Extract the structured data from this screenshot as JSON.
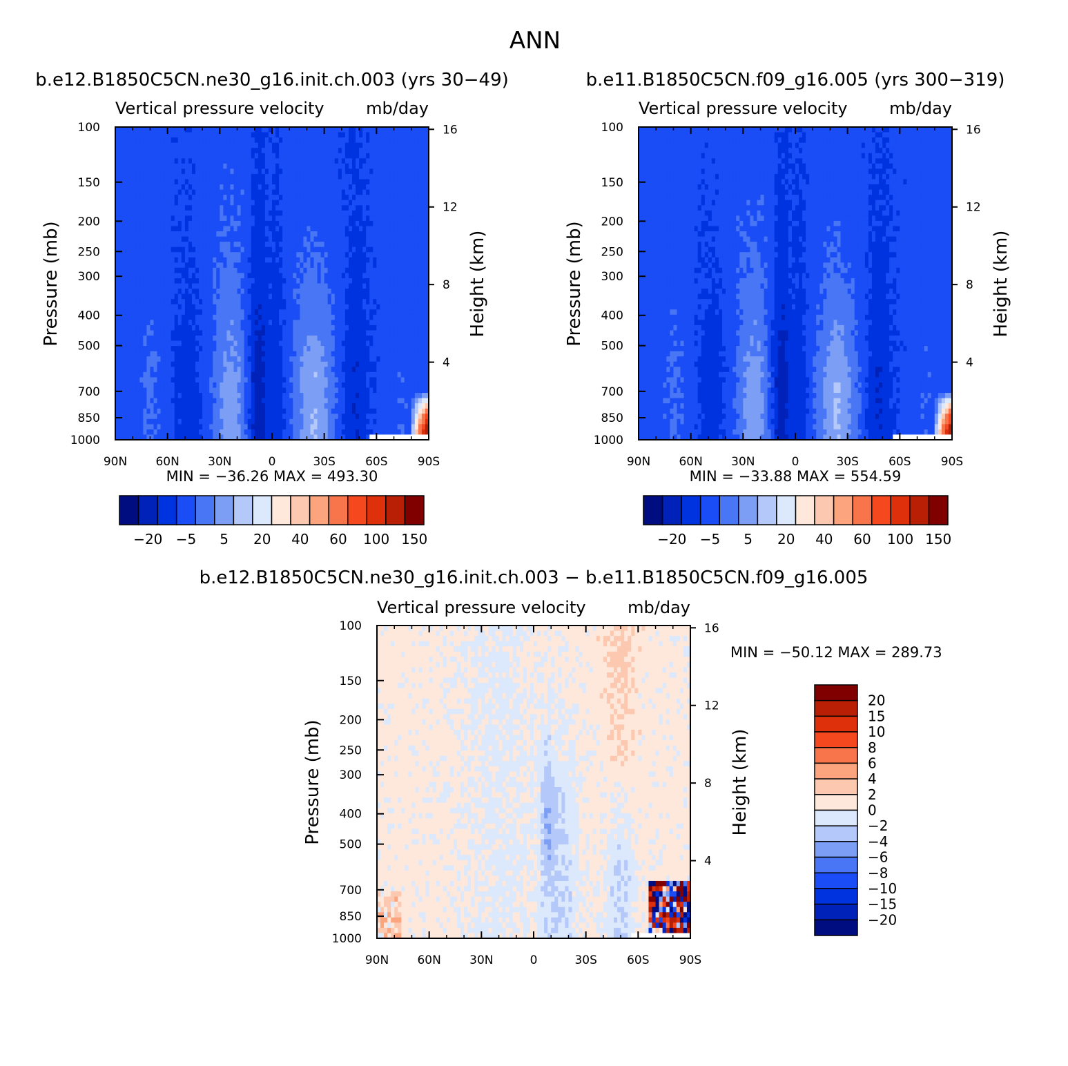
{
  "figure_title": "ANN",
  "panels": [
    {
      "title": "b.e12.B1850C5CN.ne30_g16.init.ch.003 (yrs 30-49)",
      "field_name": "Vertical pressure velocity",
      "field_units": "mb/day",
      "min_max": "MIN = -36.26   MAX = 493.30"
    },
    {
      "title": "b.e11.B1850C5CN.f09_g16.005 (yrs 300-319)",
      "field_name": "Vertical pressure velocity",
      "field_units": "mb/day",
      "min_max": "MIN = -33.88   MAX = 554.59"
    },
    {
      "title": "b.e12.B1850C5CN.ne30_g16.init.ch.003 - b.e11.B1850C5CN.f09_g16.005",
      "field_name": "Vertical pressure velocity",
      "field_units": "mb/day",
      "min_max": "MIN = -50.12   MAX = 289.73"
    }
  ],
  "chart_data": [
    {
      "type": "heatmap",
      "title": "b.e12.B1850C5CN.ne30_g16.init.ch.003 (yrs 30-49)",
      "xlabel": "",
      "ylabel": "Pressure (mb)",
      "y2label": "Height (km)",
      "x_ticks": [
        "90N",
        "60N",
        "30N",
        "0",
        "30S",
        "60S",
        "90S"
      ],
      "x_values": [
        90,
        60,
        30,
        0,
        -30,
        -60,
        -90
      ],
      "y_ticks": [
        100,
        150,
        200,
        250,
        300,
        400,
        500,
        700,
        850,
        1000
      ],
      "y_scale": "log",
      "ylim": [
        1000,
        100
      ],
      "y2_ticks": [
        4,
        8,
        12,
        16
      ],
      "colorbar_labels": [
        "-20",
        "-5",
        "5",
        "20",
        "40",
        "60",
        "100",
        "150"
      ],
      "min": -36.26,
      "max": 493.3
    },
    {
      "type": "heatmap",
      "title": "b.e11.B1850C5CN.f09_g16.005 (yrs 300-319)",
      "xlabel": "",
      "ylabel": "Pressure (mb)",
      "y2label": "Height (km)",
      "x_ticks": [
        "90N",
        "60N",
        "30N",
        "0",
        "30S",
        "60S",
        "90S"
      ],
      "x_values": [
        90,
        60,
        30,
        0,
        -30,
        -60,
        -90
      ],
      "y_ticks": [
        100,
        150,
        200,
        250,
        300,
        400,
        500,
        700,
        850,
        1000
      ],
      "y_scale": "log",
      "ylim": [
        1000,
        100
      ],
      "y2_ticks": [
        4,
        8,
        12,
        16
      ],
      "colorbar_labels": [
        "-20",
        "-5",
        "5",
        "20",
        "40",
        "60",
        "100",
        "150"
      ],
      "min": -33.88,
      "max": 554.59
    },
    {
      "type": "heatmap",
      "title": "b.e12.B1850C5CN.ne30_g16.init.ch.003 - b.e11.B1850C5CN.f09_g16.005",
      "xlabel": "",
      "ylabel": "Pressure (mb)",
      "y2label": "Height (km)",
      "x_ticks": [
        "90N",
        "60N",
        "30N",
        "0",
        "30S",
        "60S",
        "90S"
      ],
      "x_values": [
        90,
        60,
        30,
        0,
        -30,
        -60,
        -90
      ],
      "y_ticks": [
        100,
        150,
        200,
        250,
        300,
        400,
        500,
        700,
        850,
        1000
      ],
      "y_scale": "log",
      "ylim": [
        1000,
        100
      ],
      "y2_ticks": [
        4,
        8,
        12,
        16
      ],
      "colorbar_labels": [
        "20",
        "15",
        "10",
        "8",
        "6",
        "4",
        "2",
        "0",
        "-2",
        "-4",
        "-6",
        "-8",
        "-10",
        "-15",
        "-20"
      ],
      "min": -50.12,
      "max": 289.73
    }
  ],
  "palette": {
    "main": [
      "#000d80",
      "#0022b8",
      "#0033e0",
      "#1a4df5",
      "#4876f5",
      "#7c9ff5",
      "#b4c8fa",
      "#dce8fb",
      "#fde8db",
      "#fcc8b0",
      "#fba47e",
      "#f8744a",
      "#f5481f",
      "#de300a",
      "#b81f04",
      "#800000"
    ],
    "diff": [
      "#800000",
      "#b81f04",
      "#de300a",
      "#f5481f",
      "#f8744a",
      "#fba47e",
      "#fcc8b0",
      "#fde8db",
      "#dce8fb",
      "#b4c8fa",
      "#7c9ff5",
      "#4876f5",
      "#1a4df5",
      "#0033e0",
      "#0022b8",
      "#000d80"
    ]
  }
}
